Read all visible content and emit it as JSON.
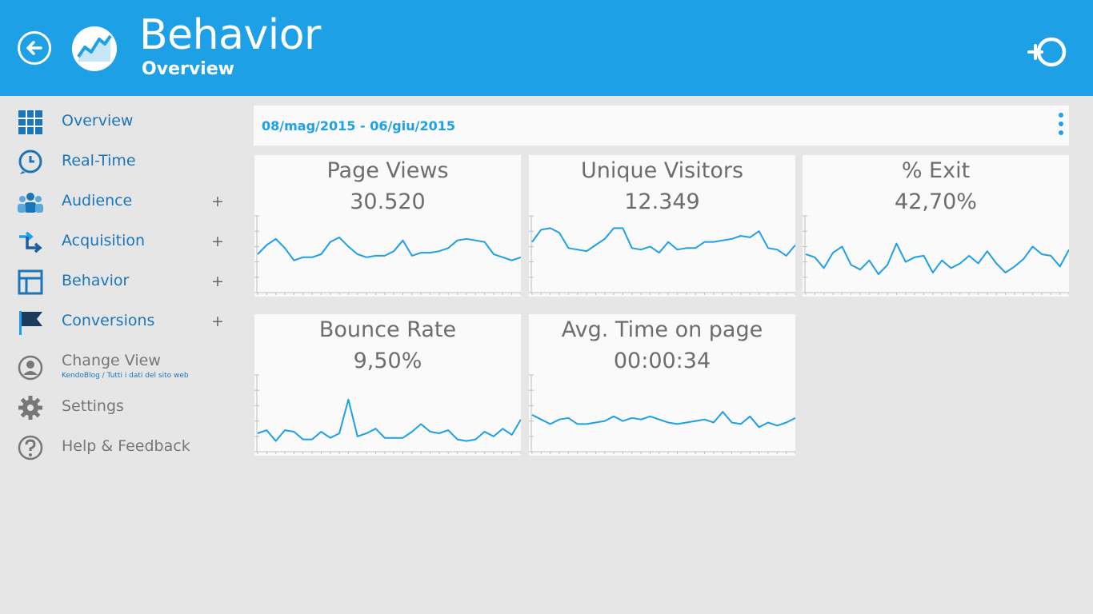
{
  "header": {
    "title": "Behavior",
    "subtitle": "Overview",
    "back_icon": "back-arrow-icon",
    "logo_icon": "analytics-logo-icon",
    "add_icon": "add-view-icon"
  },
  "sidebar": {
    "items": [
      {
        "label": "Overview",
        "icon": "grid-icon",
        "expandable": false
      },
      {
        "label": "Real-Time",
        "icon": "clock-icon",
        "expandable": false
      },
      {
        "label": "Audience",
        "icon": "people-icon",
        "expandable": true
      },
      {
        "label": "Acquisition",
        "icon": "arrows-icon",
        "expandable": true
      },
      {
        "label": "Behavior",
        "icon": "layout-icon",
        "expandable": true
      },
      {
        "label": "Conversions",
        "icon": "flag-icon",
        "expandable": true
      }
    ],
    "change_view": {
      "label": "Change View",
      "sub": "KendoBlog / Tutti i dati del sito web",
      "icon": "user-icon"
    },
    "settings": {
      "label": "Settings",
      "icon": "gear-icon"
    },
    "help": {
      "label": "Help & Feedback",
      "icon": "help-icon"
    },
    "plus": "+"
  },
  "date_range": "08/mag/2015 - 06/giu/2015",
  "colors": {
    "accent": "#1ea0e6",
    "nav": "#1b75bb",
    "line": "#1ea0e6"
  },
  "chart_data": [
    {
      "type": "line",
      "title": "Page Views",
      "value": "30.520",
      "values": [
        25,
        31,
        35,
        29,
        21,
        23,
        23,
        25,
        33,
        36,
        30,
        25,
        23,
        24,
        24,
        27,
        34,
        24,
        26,
        26,
        27,
        29,
        34,
        35,
        34,
        33,
        25,
        23,
        21,
        23
      ]
    },
    {
      "type": "line",
      "title": "Unique Visitors",
      "value": "12.349",
      "values": [
        33,
        41,
        42,
        39,
        29,
        28,
        27,
        31,
        35,
        42,
        42,
        29,
        28,
        30,
        26,
        33,
        28,
        29,
        29,
        33,
        33,
        34,
        35,
        37,
        36,
        40,
        29,
        28,
        24,
        31
      ]
    },
    {
      "type": "line",
      "title": "% Exit",
      "value": "42,70%",
      "values": [
        25,
        23,
        16,
        26,
        30,
        18,
        15,
        21,
        12,
        18,
        32,
        20,
        23,
        24,
        13,
        21,
        16,
        19,
        24,
        19,
        27,
        19,
        13,
        17,
        22,
        30,
        25,
        24,
        17,
        28
      ]
    },
    {
      "type": "line",
      "title": "Bounce Rate",
      "value": "9,50%",
      "values": [
        12,
        14,
        7,
        14,
        13,
        8,
        8,
        13,
        9,
        12,
        34,
        10,
        12,
        15,
        9,
        9,
        9,
        13,
        18,
        13,
        12,
        14,
        8,
        7,
        8,
        13,
        10,
        15,
        11,
        21
      ]
    },
    {
      "type": "line",
      "title": "Avg. Time on page",
      "value": "00:00:34",
      "values": [
        24,
        21,
        18,
        21,
        22,
        18,
        18,
        19,
        20,
        23,
        20,
        22,
        21,
        23,
        21,
        19,
        18,
        19,
        20,
        21,
        19,
        26,
        19,
        18,
        23,
        16,
        19,
        17,
        19,
        22
      ]
    }
  ]
}
